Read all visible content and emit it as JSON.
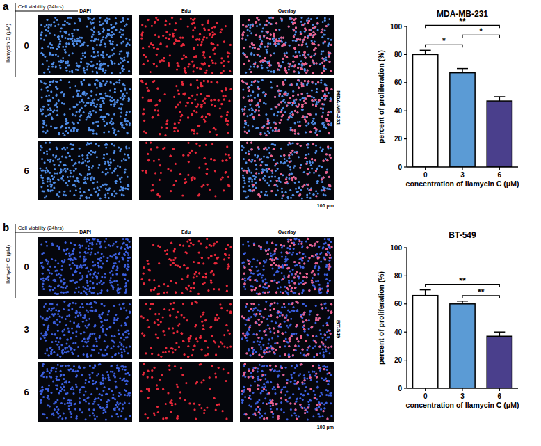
{
  "panels": [
    {
      "label": "a",
      "header": "Cell viability (24hrs)",
      "row_axis_label": "Ilamycin C (μM)",
      "columns": [
        "DAPI",
        "Edu",
        "Overlay"
      ],
      "rows": [
        "0",
        "3",
        "6"
      ],
      "cell_line": "MDA-MB-231",
      "scale_bar": "100 μm"
    },
    {
      "label": "b",
      "header": "Cell viability (24hrs)",
      "row_axis_label": "Ilamycin C (μM)",
      "columns": [
        "DAPI",
        "Edu",
        "Overlay"
      ],
      "rows": [
        "0",
        "3",
        "6"
      ],
      "cell_line": "BT-549",
      "scale_bar": "100 μm"
    }
  ],
  "chart_data": [
    {
      "type": "bar",
      "title": "MDA-MB-231",
      "x_label": "concentration of Ilamycin C (μM)",
      "y_label": "percent of proliferation (%)",
      "categories": [
        "0",
        "3",
        "6"
      ],
      "values": [
        80,
        67,
        47
      ],
      "errors": [
        3,
        3,
        3
      ],
      "colors": [
        "#ffffff",
        "#5b9bd5",
        "#4a3f8c"
      ],
      "ylim": [
        0,
        100
      ],
      "yticks": [
        0,
        20,
        40,
        60,
        80,
        100
      ],
      "significance": [
        {
          "between": [
            "0",
            "3"
          ],
          "label": "*"
        },
        {
          "between": [
            "3",
            "6"
          ],
          "label": "*"
        },
        {
          "between": [
            "0",
            "6"
          ],
          "label": "**"
        }
      ]
    },
    {
      "type": "bar",
      "title": "BT-549",
      "x_label": "concentration of Ilamycin C (μM)",
      "y_label": "percent of proliferation (%)",
      "categories": [
        "0",
        "3",
        "6"
      ],
      "values": [
        66,
        60,
        37
      ],
      "errors": [
        4,
        2,
        3
      ],
      "colors": [
        "#ffffff",
        "#5b9bd5",
        "#4a3f8c"
      ],
      "ylim": [
        0,
        100
      ],
      "yticks": [
        0,
        20,
        40,
        60,
        80,
        100
      ],
      "significance": [
        {
          "between": [
            "3",
            "6"
          ],
          "label": "**"
        },
        {
          "between": [
            "0",
            "6"
          ],
          "label": "**"
        }
      ]
    }
  ]
}
